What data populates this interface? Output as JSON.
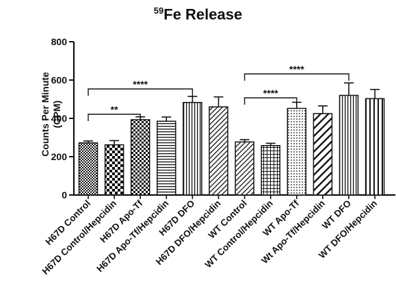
{
  "chart_data": {
    "type": "bar",
    "title_superscript": "59",
    "title_main": "Fe Release",
    "ylabel_line1": "Counts Per Minute",
    "ylabel_line2": "(CPM)",
    "xlabel": "",
    "ylim": [
      0,
      800
    ],
    "yticks": [
      0,
      200,
      400,
      600,
      800
    ],
    "grid": false,
    "categories": [
      "H67D Control",
      "H67D Control/Hepcidin",
      "H67D Apo-Tf",
      "H67D Apo-Tf/Hepcidin",
      "H67D DFO",
      "H67D DFO/Hepcidin",
      "WT Control",
      "WT Control/Hepcidin",
      "WT Apo-Tf",
      "Wt Apo-Tf/Hepcidin",
      "WT DFO",
      "WT DFO/Hepcidin"
    ],
    "values": [
      272,
      262,
      393,
      385,
      483,
      460,
      277,
      258,
      452,
      425,
      520,
      503
    ],
    "errors": [
      10,
      22,
      15,
      22,
      32,
      52,
      12,
      12,
      32,
      40,
      65,
      48
    ],
    "fill_patterns": [
      "dense-check",
      "check",
      "fine-check",
      "horizontal",
      "vertical",
      "diagonal",
      "diagonal",
      "grid",
      "dots",
      "diagonal-wide",
      "vertical",
      "vertical-wide"
    ],
    "significance": [
      {
        "from": 0,
        "to": 2,
        "label": "**"
      },
      {
        "from": 0,
        "to": 4,
        "label": "****"
      },
      {
        "from": 6,
        "to": 8,
        "label": "****"
      },
      {
        "from": 6,
        "to": 10,
        "label": "****"
      }
    ]
  }
}
